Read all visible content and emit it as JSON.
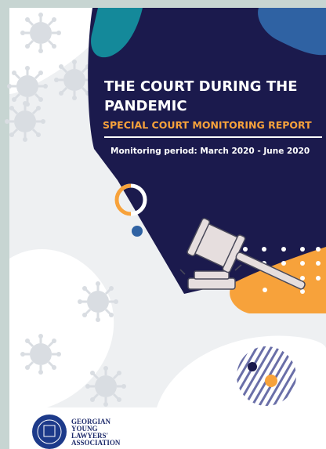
{
  "header": {
    "title_lines": [
      "THE COURT DURING THE",
      "PANDEMIC"
    ],
    "subtitle": "SPECIAL COURT MONITORING REPORT",
    "period": "Monitoring period: March 2020 - June 2020"
  },
  "footer": {
    "organization_lines": [
      "GEORGIAN",
      "YOUNG",
      "LAWYERS'",
      "ASSOCIATION"
    ]
  }
}
